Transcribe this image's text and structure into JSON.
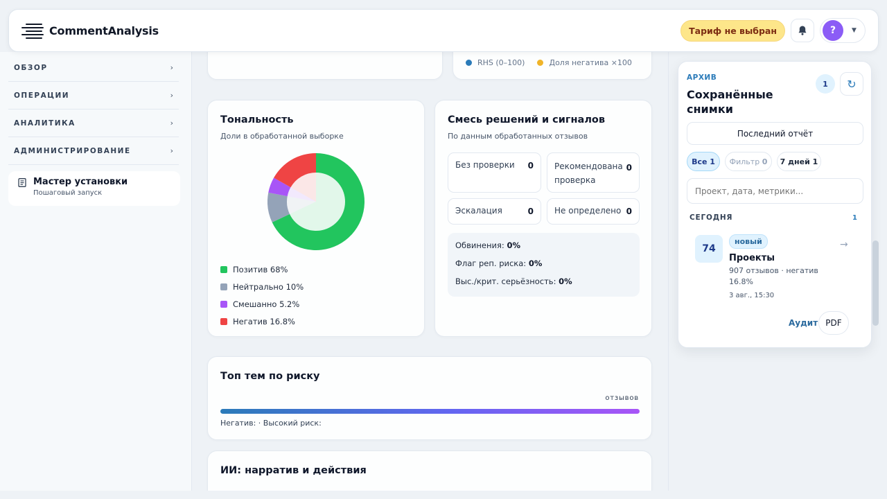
{
  "header": {
    "brand": "CommentAnalysis",
    "tariff": "Тариф не выбран",
    "avatar_letter": "?"
  },
  "sidebar": {
    "sections": [
      {
        "label": "ОБЗОР",
        "chev": "›"
      },
      {
        "label": "ОПЕРАЦИИ",
        "chev": "›"
      },
      {
        "label": "АНАЛИТИКА",
        "chev": "›"
      },
      {
        "label": "АДМИНИСТРИРОВАНИЕ",
        "chev": "›"
      }
    ],
    "wizard": {
      "title": "Мастер установки",
      "subtitle": "Пошаговый запуск"
    }
  },
  "top_legend": {
    "items": [
      {
        "label": "RHS (0–100)",
        "color": "#2b7bb9"
      },
      {
        "label": "Доля негатива ×100",
        "color": "#f0b429"
      }
    ]
  },
  "sentiment": {
    "title": "Тональность",
    "subtitle": "Доли в обработанной выборке",
    "legend": [
      {
        "label": "Позитив 68%",
        "color": "#22c55e"
      },
      {
        "label": "Нейтрально 10%",
        "color": "#94a3b8"
      },
      {
        "label": "Смешанно 5.2%",
        "color": "#a855f7"
      },
      {
        "label": "Негатив 16.8%",
        "color": "#ef4444"
      }
    ]
  },
  "chart_data": {
    "type": "pie",
    "title": "Тональность",
    "categories": [
      "Позитив",
      "Нейтрально",
      "Смешанно",
      "Негатив"
    ],
    "values": [
      68,
      10,
      5.2,
      16.8
    ],
    "colors": [
      "#22c55e",
      "#94a3b8",
      "#a855f7",
      "#ef4444"
    ]
  },
  "decisions": {
    "title": "Смесь решений и сигналов",
    "subtitle": "По данным обработанных отзывов",
    "boxes": [
      {
        "label": "Без проверки",
        "value": "0"
      },
      {
        "label": "Рекомендована проверка",
        "value": "0"
      },
      {
        "label": "Эскалация",
        "value": "0"
      },
      {
        "label": "Не определено",
        "value": "0"
      }
    ],
    "signals": [
      {
        "label": "Обвинения: ",
        "value": "0%"
      },
      {
        "label": "Флаг реп. риска: ",
        "value": "0%"
      },
      {
        "label": "Выс./крит. серьёзность: ",
        "value": "0%"
      }
    ]
  },
  "risk_topics": {
    "title": "Топ тем по риску",
    "unit": "отзывов",
    "footer": "Негатив: · Высокий риск:"
  },
  "ai": {
    "title": "ИИ: нарратив и действия"
  },
  "archive": {
    "tag": "АРХИВ",
    "title": "Сохранённые снимки",
    "count": "1",
    "refresh": "↻",
    "last_report": "Последний отчёт",
    "filters": [
      {
        "label": "Все",
        "count": "1"
      },
      {
        "label": "Фильтр",
        "count": "0"
      },
      {
        "label": "7 дней",
        "count": "1"
      }
    ],
    "search_placeholder": "Проект, дата, метрики...",
    "group": {
      "label": "СЕГОДНЯ",
      "count": "1"
    },
    "item": {
      "score": "74",
      "badge": "новый",
      "title": "Проекты",
      "meta": "907 отзывов · негатив 16.8%",
      "date": "3 авг., 15:30",
      "arrow": "→",
      "audit": "Аудит",
      "pdf": "PDF"
    }
  }
}
